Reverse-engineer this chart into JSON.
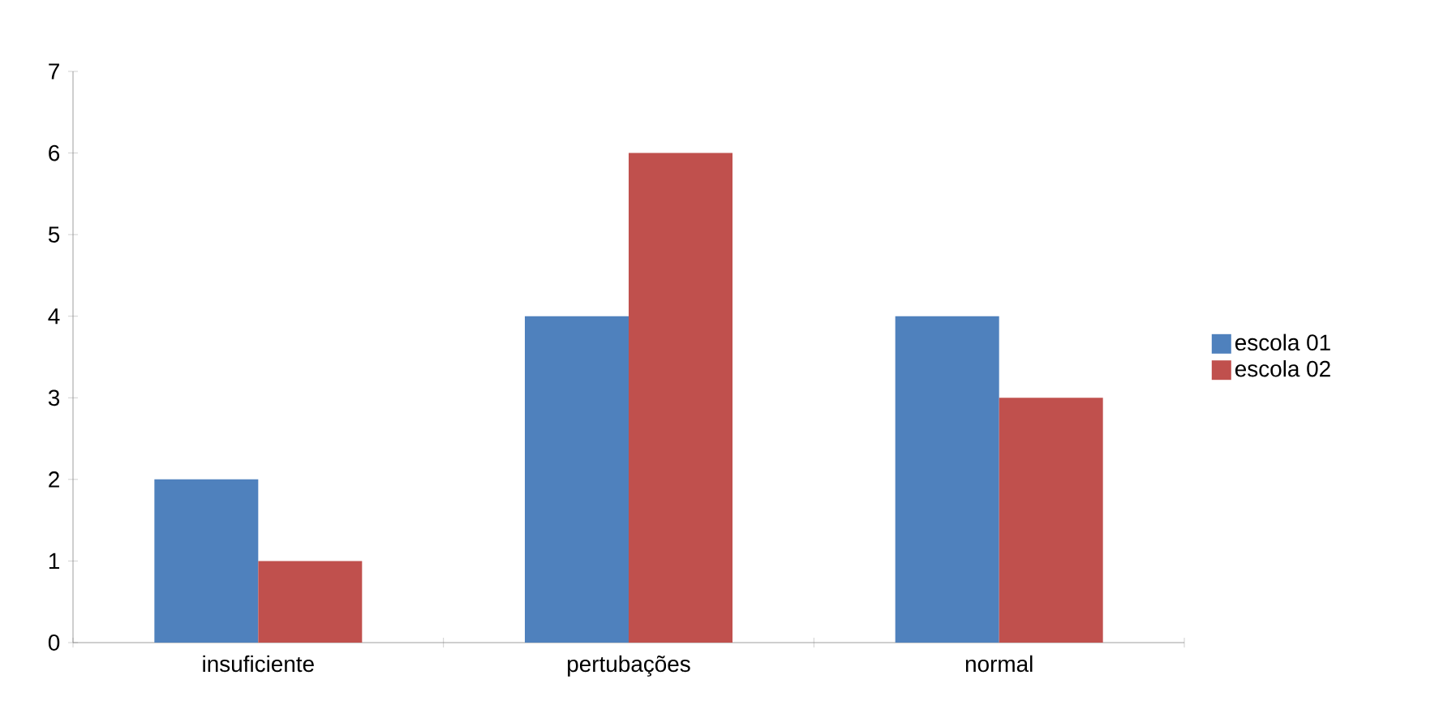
{
  "chart_data": {
    "type": "bar",
    "categories": [
      "insuficiente",
      "pertubações",
      "normal"
    ],
    "series": [
      {
        "name": "escola 01",
        "color": "#4f81bd",
        "values": [
          2,
          4,
          4
        ]
      },
      {
        "name": "escola 02",
        "color": "#c0504d",
        "values": [
          1,
          6,
          3
        ]
      }
    ],
    "ylim": [
      0,
      7
    ],
    "yticks": [
      0,
      1,
      2,
      3,
      4,
      5,
      6,
      7
    ],
    "grid": false,
    "legend": "right"
  }
}
